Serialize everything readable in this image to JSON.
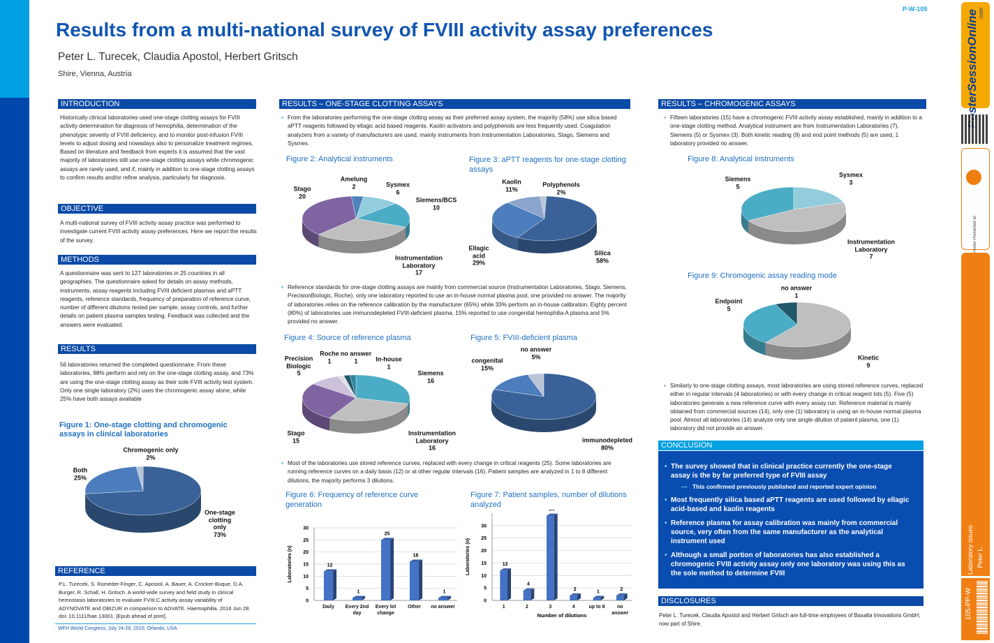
{
  "header": {
    "code": "P-W-105",
    "title": "Results from a multi-national survey of FVIII activity assay preferences",
    "authors": "Peter L. Turecek, Claudia Apostol, Herbert Gritsch",
    "affiliation": "Shire, Vienna, Austria"
  },
  "sidebar": {
    "brand": "PosterSessionOnline",
    "brand_suffix": ".com",
    "presented_at": "Poster Presented at:",
    "topic": "Laboratory issues",
    "author": "Peter L.",
    "poster_id": "105-PP-W"
  },
  "introduction": {
    "heading": "INTRODUCTION",
    "text": "Historically clinical laboratories used one-stage clotting assays for FVIII activity determination for diagnosis of hemophilia, determination of the phenotypic severity of FVIII deficiency, and to monitor post-infusion FVIII levels to adjust dosing and nowadays also to personalize treatment regimes. Based on literature and feedback from experts it is assumed that the vast majority of laboratories still use one-stage clotting assays while chromogenic assays are rarely used, and if, mainly in addition to one-stage clotting assays to confirm results and/or refine analysis, particularly for diagnosis."
  },
  "objective": {
    "heading": "OBJECTIVE",
    "text": "A multi-national survey of FVIII activity assay practice  was performed to investigate current FVIII activity assay preferences. Here we report the results of the survey."
  },
  "methods": {
    "heading": "METHODS",
    "text": "A questionnaire was sent to 127 laboratories in 25 countries in all geographies. The questionnaire asked for details on assay methods, instruments, assay reagents including FVIII deficient plasmas and aPTT reagents, reference standards, frequency of preparation of reference curve, number of different dilutions tested per sample, assay controls, and further details on patient plasma samples testing. Feedback was collected and the answers were evaluated."
  },
  "results": {
    "heading": "RESULTS",
    "text": "56 laboratories returned the completed questionnaire. From these laboratories, 98% perform and rely on the one-stage clotting assay, and 73% are using the one-stage clotting assay as their sole FVIII activity test system. Only one single laboratory (2%) uses the chromogenic assay alone, while 25% have both assays available"
  },
  "figure1": {
    "title": "Figure 1: One-stage clotting and chromogenic assays in clinical laboratories",
    "chart": {
      "type": "pie",
      "categories": [
        "Chromogenic only",
        "One-stage clotting only",
        "Both"
      ],
      "values": [
        2,
        73,
        25
      ],
      "value_labels": [
        "2%",
        "73%",
        "25%"
      ],
      "colors": [
        "#b7c3d9",
        "#3a6299",
        "#4c7dbd"
      ]
    }
  },
  "reference": {
    "heading": "REFERENCE",
    "text": "P.L. Turecek, S. Romeder-Finger, C. Apostol, A. Bauer, A. Crocker-Buque, D.A. Burger, R. Schall, H. Gritsch. A world-wide survey and field study in clinical hemostasis laboratories to evaluate FVIII:C activity assay variability of ADYNOVATE and OBIZUR in comparison to ADVATE. Haemophilia. 2016 Jun 28. doi: 10.1111/hae.13001. [Epub ahead of print]."
  },
  "footer": "WFH World Congress; July 24-28, 2016; Orlando, USA",
  "one_stage": {
    "heading": "RESULTS – ONE-STAGE CLOTTING ASSAYS",
    "bullets": [
      "From the laboratories performing the one-stage clotting assay as their preferred assay system, the majority (58%) use silica based aPTT reagents followed by ellagic acid based reagents. Kaolin activators and polyphenols are less frequently used. Coagulation analyzers from a variety of manufacturers are used, mainly instruments from Instrumentation Laboratories, Stago, Siemens and Sysmex.",
      "Reference standards for one-stage clotting assays are mainly from commercial source (Instrumentation Laboratories, Stago, Siemens, PrecisionBiologic, Roche), only one laboratory reported to use an in-house normal plasma pool, one provided no answer. The majority of laboratories relies on the reference calibration by the manufacturer (65%) while 33% perform an in-house calibration. Eighty percent (80%) of laboratories use immunodepleted FVIII-deficient plasma, 15% reported to use congenital hemophilia A plasma and 5% provided no answer.",
      "Most of the laboratories use stored reference curves, replaced with every change in critical reagents (25). Some laboratories are running reference curves on a daily basis (12) or at other regular intervals (16). Patient samples are analyzed in 1  to 8 different dilutions, the majority performs 3 dilutions."
    ]
  },
  "figure2": {
    "title": "Figure 2: Analytical instruments",
    "chart": {
      "type": "pie",
      "categories": [
        "Amelung",
        "Sysmex",
        "Siemens/BCS",
        "Instrumentation Laboratory",
        "Stago"
      ],
      "values": [
        2,
        6,
        10,
        17,
        20
      ],
      "colors": [
        "#4f81bd",
        "#93cddd",
        "#4bacc6",
        "#bfbfbf",
        "#8064a2"
      ]
    }
  },
  "figure3": {
    "title": "Figure 3: aPTT reagents for one-stage clotting assays",
    "chart": {
      "type": "pie",
      "categories": [
        "Polyphenols",
        "Silica",
        "Ellagic acid",
        "Kaolin"
      ],
      "values": [
        2,
        58,
        29,
        11
      ],
      "value_labels": [
        "2%",
        "58%",
        "29%",
        "11%"
      ],
      "colors": [
        "#b9c4d6",
        "#3a6299",
        "#4c7dbd",
        "#8aa4cc"
      ]
    }
  },
  "figure4": {
    "title": "Figure 4: Source of reference plasma",
    "chart": {
      "type": "pie",
      "categories": [
        "Siemens",
        "Instrumentation Laboratory",
        "Stago",
        "Precision Biologic",
        "Roche",
        "no answer",
        "In-house"
      ],
      "values": [
        16,
        16,
        15,
        5,
        1,
        1,
        1
      ],
      "colors": [
        "#4bacc6",
        "#bfbfbf",
        "#8064a2",
        "#ccc1da",
        "#e0e0e0",
        "#215868",
        "#31859c"
      ]
    }
  },
  "figure5": {
    "title": "Figure 5: FVIII-deficient plasma",
    "chart": {
      "type": "pie",
      "categories": [
        "immunodepleted",
        "congenital",
        "no answer"
      ],
      "values": [
        80,
        15,
        5
      ],
      "value_labels": [
        "80%",
        "15%",
        "5%"
      ],
      "colors": [
        "#3a6299",
        "#4c7dbd",
        "#b9c4d6"
      ]
    }
  },
  "figure6": {
    "title": "Figure 6:  Frequency of reference curve generation",
    "chart": {
      "type": "bar",
      "categories": [
        "Daily",
        "Every 2nd day",
        "Every lot change",
        "Other",
        "no answer"
      ],
      "values": [
        12,
        1,
        25,
        16,
        1
      ],
      "color": "#4472c4",
      "ylabel": "Laboratories (n)",
      "ylim": [
        0,
        30
      ],
      "yticks": [
        0,
        5,
        10,
        15,
        20,
        25,
        30
      ],
      "grid": true
    }
  },
  "figure7": {
    "title": "Figure 7:  Patient samples, number of dilutions analyzed",
    "chart": {
      "type": "bar",
      "categories": [
        "1",
        "2",
        "3",
        "4",
        "up to 8",
        "no answer"
      ],
      "values": [
        12,
        4,
        34,
        2,
        1,
        2
      ],
      "color": "#4472c4",
      "ylabel": "Laboratories (n)",
      "xlabel": "Number of dilutions",
      "ylim": [
        0,
        35
      ],
      "yticks": [
        0,
        5,
        10,
        15,
        20,
        25,
        30
      ],
      "grid": true
    }
  },
  "chromogenic": {
    "heading": "RESULTS – CHROMOGENIC ASSAYS",
    "bullets": [
      "Fifteen laboratories (15) have a chromogenic FVIII activity assay established, mainly in addition to a one-stage clotting method. Analytical instrument are from Instrumentation Laboratories (7), Siemens (5) or Sysmex (3). Both kinetic reading (9) and end point methods (5) are used, 1 laboratory provided no answer.",
      "Similarly to one-stage clotting assays, most laboratories are using stored reference curves, replaced either in regular intervals (4 laboratories) or with every change in critical reagent lots (5). Five (5) laboratories generate a new reference curve with every assay run. Reference material is mainly obtained from commercial sources (14), only one (1) laboratory is using an in-house normal plasma pool. Almost all laboratories (14) analyze only one single dilution of patient plasma, one (1) laboratory did not provide an answer."
    ]
  },
  "figure8": {
    "title": "Figure 8:  Analytical instruments",
    "chart": {
      "type": "pie",
      "categories": [
        "Sysmex",
        "Instrumentation Laboratory",
        "Siemens"
      ],
      "values": [
        3,
        7,
        5
      ],
      "colors": [
        "#93cddd",
        "#bfbfbf",
        "#4bacc6"
      ]
    }
  },
  "figure9": {
    "title": "Figure 9:  Chromogenic assay reading mode",
    "chart": {
      "type": "pie",
      "categories": [
        "Kinetic",
        "Endpoint",
        "no answer"
      ],
      "values": [
        9,
        5,
        1
      ],
      "colors": [
        "#bfbfbf",
        "#4bacc6",
        "#215868"
      ]
    }
  },
  "conclusion": {
    "heading": "CONCLUSION",
    "items": [
      "The survey showed that in clinical practice currently the one-stage assay is the by far preferred type of FVIII assay",
      "This confirmed previously published and reported expert opinion",
      "Most frequently silica based aPTT reagents are used followed by ellagic acid-based and kaolin reagents",
      "Reference plasma for assay calibration was mainly from commercial source, very often from the same manufacturer as the analytical instrument used",
      "Although a small portion of laboratories has also established a chromogenic FVIII activity assay only one laboratory was using this as the sole method to determine FVIII"
    ]
  },
  "disclosures": {
    "heading": "DISCLOSURES",
    "text": "Peter L. Turecek, Claudia Apostol and Herbert Gritsch are full-time employees of Baxalta Innovations GmbH, now part of Shire."
  }
}
